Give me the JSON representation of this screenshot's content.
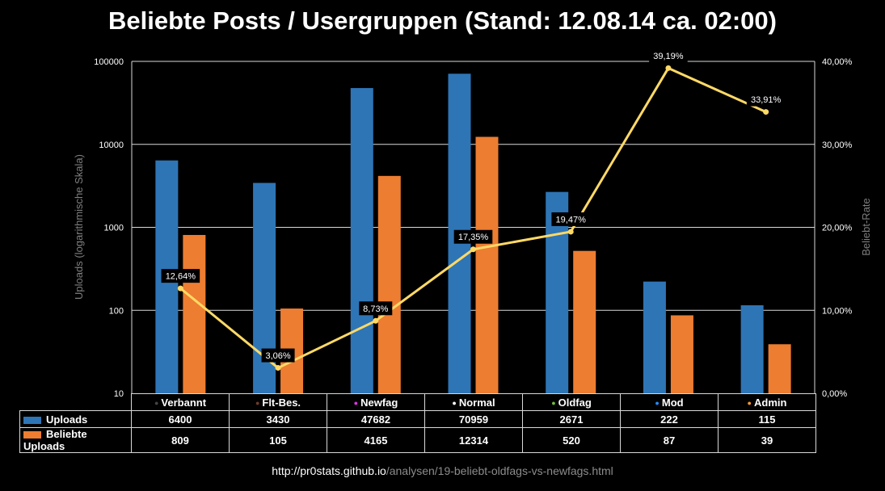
{
  "title": "Beliebte Posts / Usergruppen (Stand: 12.08.14 ca. 02:00)",
  "footer": {
    "url_bold": "http://pr0stats.github.io",
    "url_rest": "/analysen/19-beliebt-oldfags-vs-newfags.html"
  },
  "chart_data": {
    "type": "bar",
    "title": "Beliebte Posts / Usergruppen (Stand: 12.08.14 ca. 02:00)",
    "categories": [
      "Verbannt",
      "Flt-Bes.",
      "Newfag",
      "Normal",
      "Oldfag",
      "Mod",
      "Admin"
    ],
    "category_colors": [
      "#444444",
      "#6e3b2a",
      "#e233e2",
      "#ffffff",
      "#6dbf3b",
      "#1e90ff",
      "#f39a33"
    ],
    "ylabel": "Uploads (logarithmische Skala)",
    "ylabel_right": "Beliebt-Rate",
    "y_scale": "log",
    "ylim": [
      10,
      100000
    ],
    "y_ticks": [
      "10",
      "100",
      "1000",
      "10000",
      "100000"
    ],
    "y2lim": [
      0,
      40
    ],
    "y2_ticks": [
      "0,00%",
      "10,00%",
      "20,00%",
      "30,00%",
      "40,00%"
    ],
    "grid": true,
    "series": [
      {
        "name": "Uploads",
        "type": "bar",
        "color": "#2e75b6",
        "values": [
          6400,
          3430,
          47682,
          70959,
          2671,
          222,
          115
        ]
      },
      {
        "name": "Beliebte Uploads",
        "type": "bar",
        "color": "#ed7d31",
        "values": [
          809,
          105,
          4165,
          12314,
          520,
          87,
          39
        ]
      },
      {
        "name": "Beliebt-Rate",
        "type": "line",
        "color": "#ffd966",
        "axis": "right",
        "values": [
          12.64,
          3.06,
          8.73,
          17.35,
          19.47,
          39.19,
          33.91
        ],
        "labels": [
          "12,64%",
          "3,06%",
          "8,73%",
          "17,35%",
          "19,47%",
          "39,19%",
          "33,91%"
        ]
      }
    ]
  }
}
